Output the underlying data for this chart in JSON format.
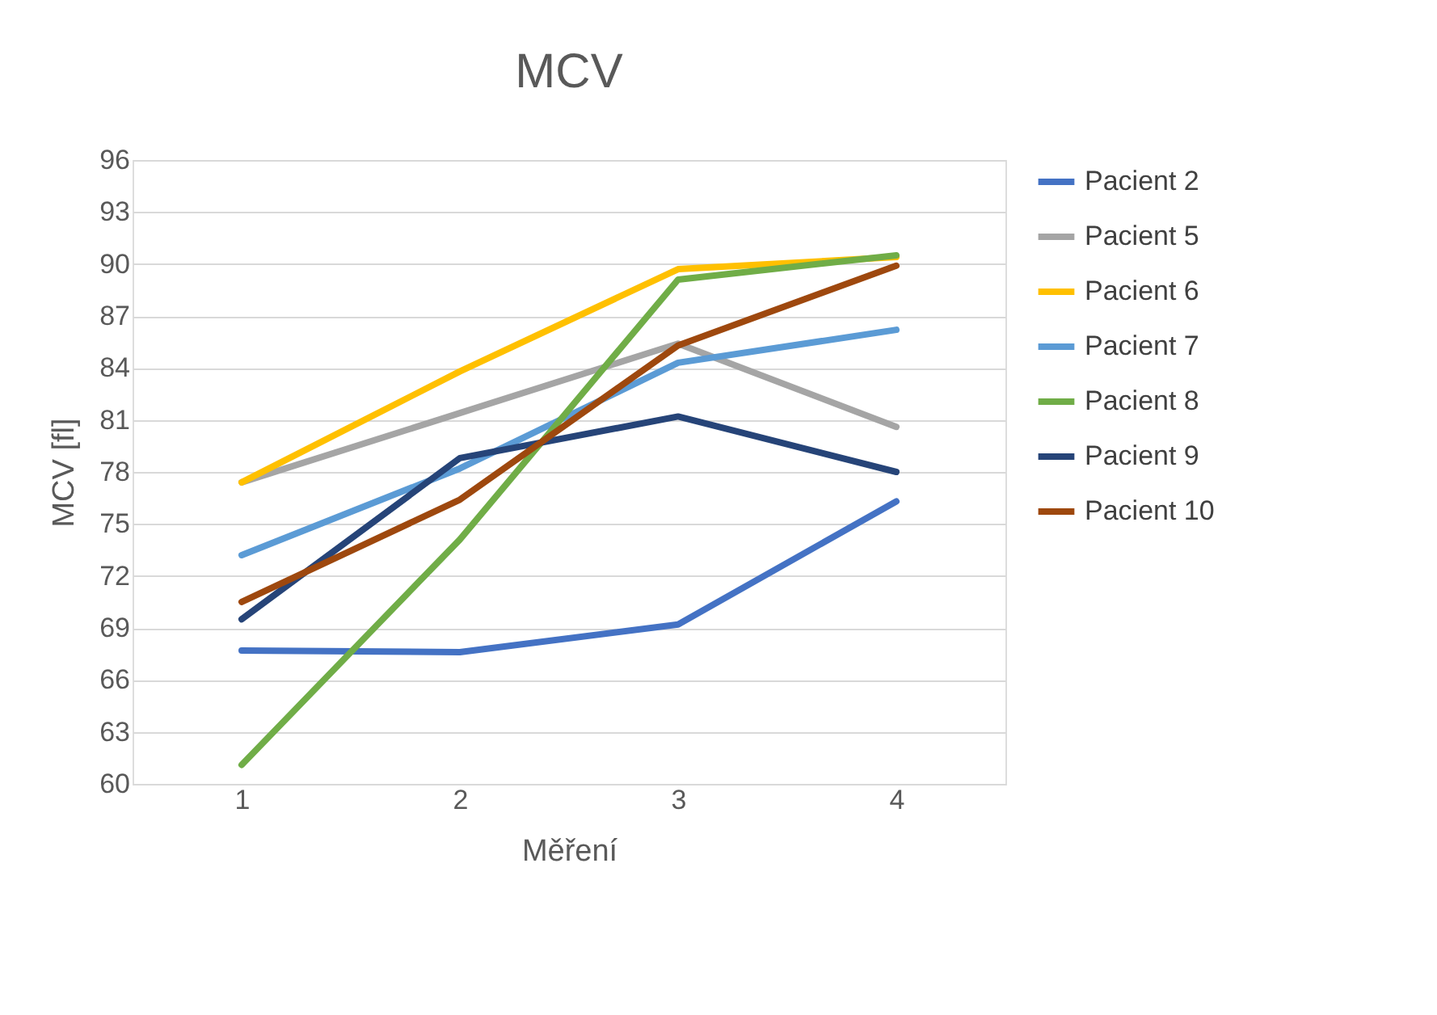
{
  "chart_data": {
    "type": "line",
    "title": "MCV",
    "xlabel": "Měření",
    "ylabel": "MCV [fl]",
    "categories": [
      "1",
      "2",
      "3",
      "4"
    ],
    "series": [
      {
        "name": "Pacient 2",
        "color": "#4472c4",
        "values": [
          67.7,
          67.6,
          69.2,
          76.3
        ]
      },
      {
        "name": "Pacient 5",
        "color": "#a5a5a5",
        "values": [
          77.4,
          81.4,
          85.4,
          80.6
        ]
      },
      {
        "name": "Pacient 6",
        "color": "#ffc000",
        "values": [
          77.4,
          83.8,
          89.7,
          90.4
        ]
      },
      {
        "name": "Pacient 7",
        "color": "#5b9bd5",
        "values": [
          73.2,
          78.2,
          84.3,
          86.2
        ]
      },
      {
        "name": "Pacient 8",
        "color": "#70ad47",
        "values": [
          61.1,
          74.1,
          89.1,
          90.5
        ]
      },
      {
        "name": "Pacient 9",
        "color": "#264478",
        "values": [
          69.5,
          78.8,
          81.2,
          78.0
        ]
      },
      {
        "name": "Pacient 10",
        "color": "#9e480e",
        "values": [
          70.5,
          76.4,
          85.3,
          89.9
        ]
      }
    ],
    "ylim": [
      60,
      96
    ],
    "yticks": [
      60,
      63,
      66,
      69,
      72,
      75,
      78,
      81,
      84,
      87,
      90,
      93,
      96
    ],
    "grid": "y",
    "legend": "right",
    "marker": "none",
    "line_style": "solid"
  }
}
